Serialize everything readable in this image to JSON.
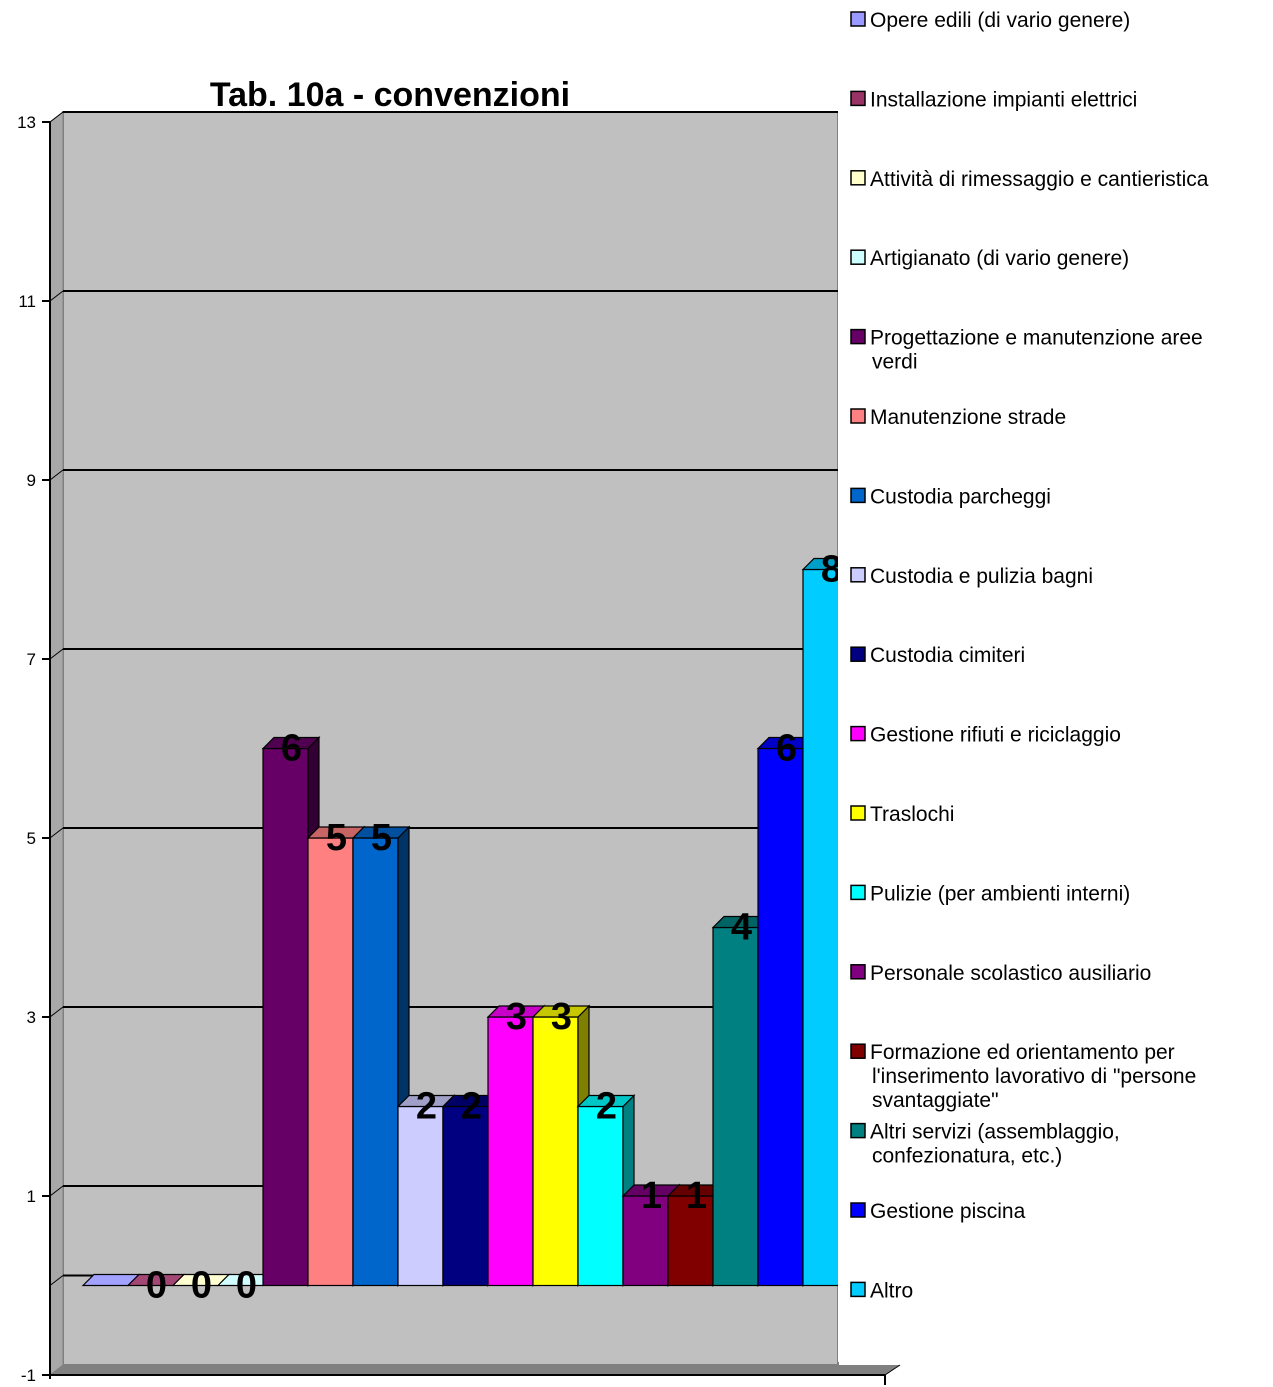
{
  "chart_data": {
    "type": "bar",
    "title": "Tab. 10a - convenzioni",
    "xlabel": "",
    "ylabel": "",
    "ylim": [
      -1,
      13
    ],
    "yticks": [
      "-1",
      "1",
      "3",
      "5",
      "7",
      "9",
      "11",
      "13"
    ],
    "grid": true,
    "legend_position": "right",
    "three_d": true,
    "series": [
      {
        "name": "Opere edili (di vario genere)",
        "value": 0,
        "label": "",
        "color": "#9999ff"
      },
      {
        "name": "Installazione impianti elettrici",
        "value": 0,
        "label": "0",
        "color": "#993366"
      },
      {
        "name": "Attività di rimessaggio e cantieristica",
        "value": 0,
        "label": "0",
        "color": "#ffffcc"
      },
      {
        "name": "Artigianato (di vario genere)",
        "value": 0,
        "label": "0",
        "color": "#ccffff"
      },
      {
        "name": "Progettazione e manutenzione aree verdi",
        "value": 6,
        "label": "6",
        "color": "#660066"
      },
      {
        "name": "Manutenzione strade",
        "value": 5,
        "label": "5",
        "color": "#ff8080"
      },
      {
        "name": "Custodia parcheggi",
        "value": 5,
        "label": "5",
        "color": "#0066cc"
      },
      {
        "name": "Custodia e pulizia bagni",
        "value": 2,
        "label": "2",
        "color": "#ccccff"
      },
      {
        "name": "Custodia cimiteri",
        "value": 2,
        "label": "2",
        "color": "#000080"
      },
      {
        "name": "Gestione rifiuti e riciclaggio",
        "value": 3,
        "label": "3",
        "color": "#ff00ff"
      },
      {
        "name": "Traslochi",
        "value": 3,
        "label": "3",
        "color": "#ffff00"
      },
      {
        "name": "Pulizie (per ambienti interni)",
        "value": 2,
        "label": "2",
        "color": "#00ffff"
      },
      {
        "name": "Personale scolastico ausiliario",
        "value": 1,
        "label": "1",
        "color": "#800080"
      },
      {
        "name": "Formazione ed orientamento per l'inserimento lavorativo di \"persone svantaggiate\"",
        "value": 1,
        "label": "1",
        "color": "#800000"
      },
      {
        "name": "Altri servizi (assemblaggio, confezionatura, etc.)",
        "value": 4,
        "label": "4",
        "color": "#008080"
      },
      {
        "name": "Gestione piscina",
        "value": 6,
        "label": "6",
        "color": "#0000ff"
      },
      {
        "name": "Altro",
        "value": 8,
        "label": "8",
        "color": "#00ccff"
      }
    ]
  },
  "legend_lines": [
    [
      "Opere edili (di vario genere)"
    ],
    [
      "Installazione impianti elettrici"
    ],
    [
      "Attività di rimessaggio e cantieristica"
    ],
    [
      "Artigianato (di vario genere)"
    ],
    [
      "Progettazione e manutenzione aree",
      "verdi"
    ],
    [
      "Manutenzione strade"
    ],
    [
      "Custodia parcheggi"
    ],
    [
      "Custodia e pulizia bagni"
    ],
    [
      "Custodia cimiteri"
    ],
    [
      "Gestione rifiuti e riciclaggio"
    ],
    [
      "Traslochi"
    ],
    [
      "Pulizie (per ambienti interni)"
    ],
    [
      "Personale scolastico ausiliario"
    ],
    [
      "Formazione ed orientamento per",
      "l'inserimento lavorativo di \"persone",
      "svantaggiate\""
    ],
    [
      "Altri servizi (assemblaggio,",
      "confezionatura, etc.)"
    ],
    [
      "Gestione piscina"
    ],
    [
      "Altro"
    ]
  ]
}
